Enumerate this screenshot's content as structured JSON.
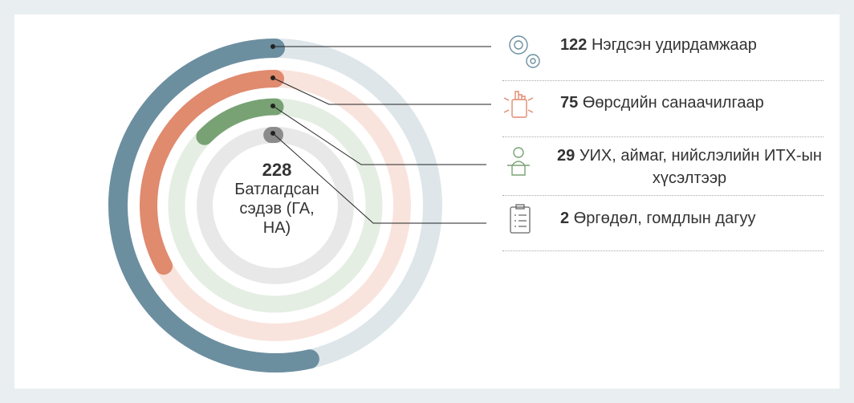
{
  "chart_data": {
    "type": "radial-bar",
    "total": 228,
    "center_label": "Батлагдсан сэдэв (ГА, НА)",
    "categories": [
      "Нэгдсэн удирдамжаар",
      "Өөрсдийн санаачилгаар",
      "УИХ, аймаг, нийслэлийн ИТХ-ын хүсэлтээр",
      "Өргөдөл, гомдлын дагуу"
    ],
    "values": [
      122,
      75,
      29,
      2
    ],
    "colors": [
      "#6c8fa0",
      "#e08a6e",
      "#78a274",
      "#8b8b8b"
    ],
    "track_colors": [
      "#dee6ea",
      "#f9e4dd",
      "#e5eee3",
      "#e8e8e8"
    ]
  }
}
